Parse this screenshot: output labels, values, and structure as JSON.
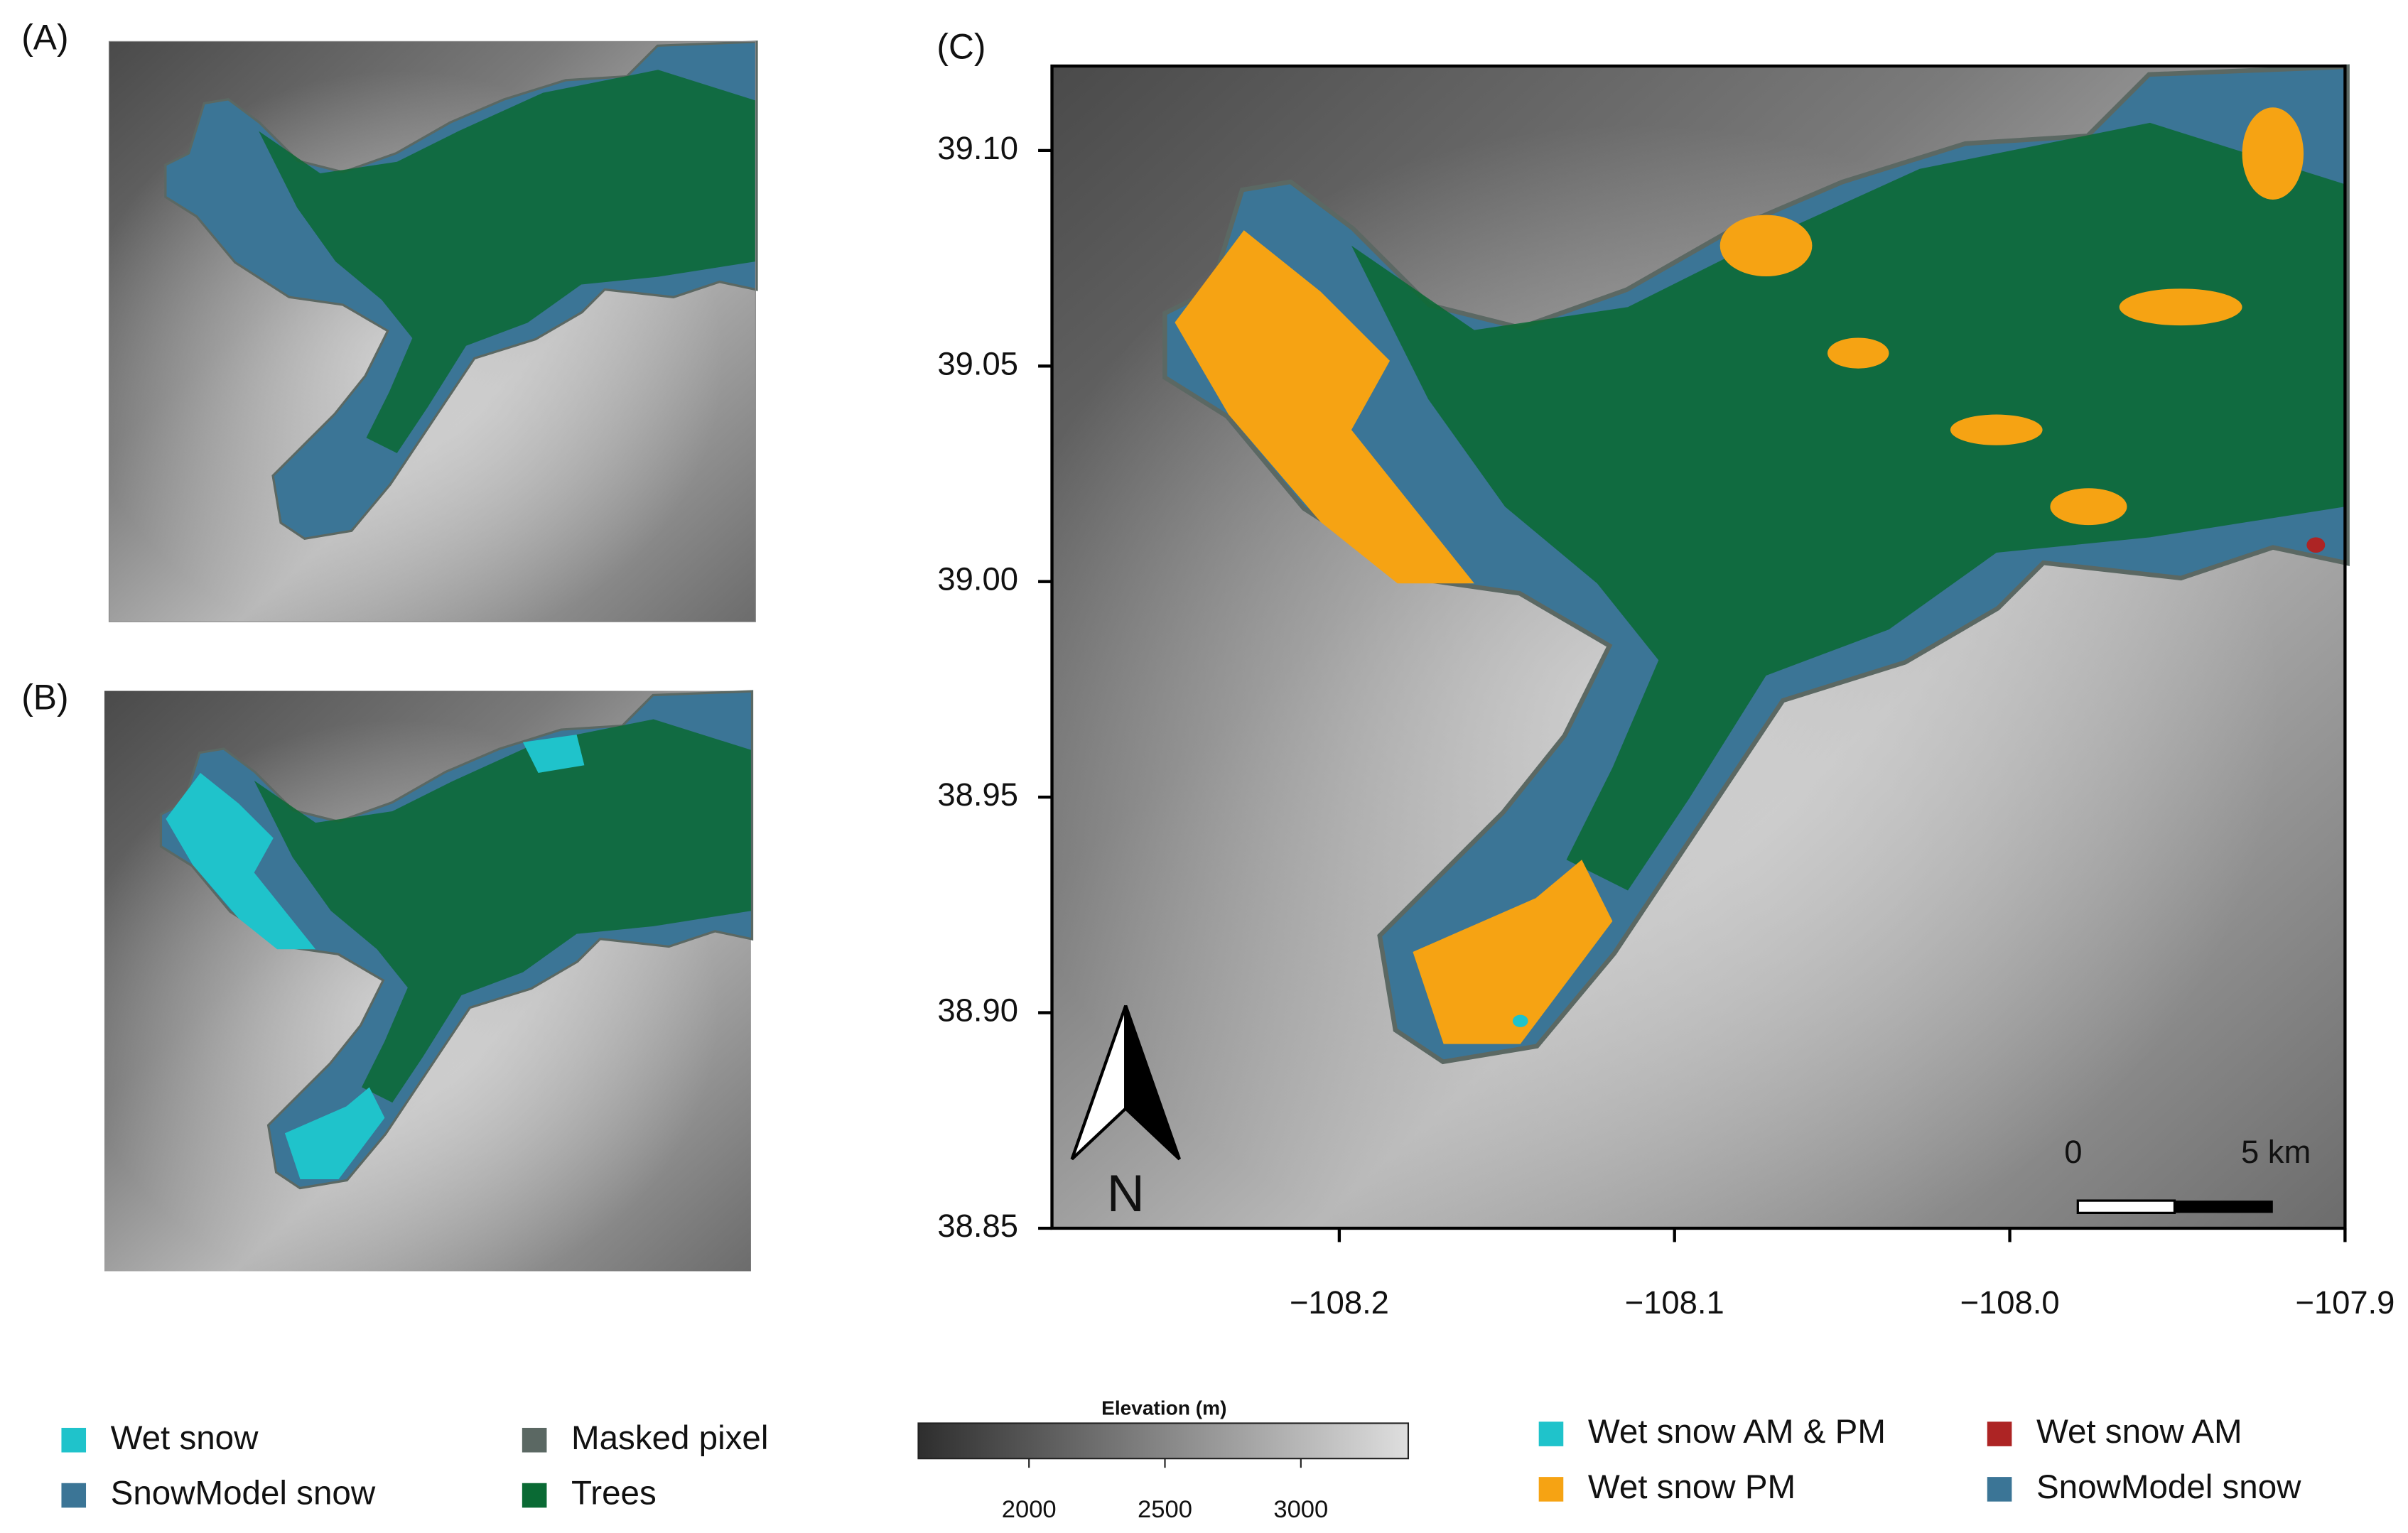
{
  "panel_labels": [
    "(A)",
    "(B)",
    "(C)"
  ],
  "map_c": {
    "xlim": [
      -108.2857,
      -107.9
    ],
    "ylim": [
      38.85,
      39.1196
    ],
    "xticks": [
      {
        "value": -108.2,
        "label": "−108.2"
      },
      {
        "value": -108.1,
        "label": "−108.1"
      },
      {
        "value": -108.0,
        "label": "−108.0"
      },
      {
        "value": -107.9,
        "label": "−107.9"
      }
    ],
    "yticks": [
      {
        "value": 39.1,
        "label": "39.10"
      },
      39.05,
      {
        "value": 39.0,
        "label": "39.00"
      },
      38.95,
      {
        "value": 38.9,
        "label": "38.90"
      },
      38.85
    ]
  },
  "scale_bar": {
    "start": "0",
    "end": "5 km"
  },
  "north": "N",
  "colorbar": {
    "title": "Elevation (m)",
    "lim": [
      1593,
      3395
    ],
    "ticks": [
      2000,
      2500,
      3000
    ]
  },
  "legend_ab": [
    {
      "name": "Wet snow",
      "color": "#1fc3cb"
    },
    {
      "name": "SnowModel snow",
      "color": "#3b7596"
    },
    {
      "name": "Masked pixel",
      "color": "#5b6863"
    },
    {
      "name": "Trees",
      "color": "#0a6a34"
    }
  ],
  "legend_c": [
    {
      "name": "Wet snow AM & PM",
      "color": "#1fc3cb"
    },
    {
      "name": "Wet snow PM",
      "color": "#f6a313"
    },
    {
      "name": "Wet snow AM",
      "color": "#ad2424"
    },
    {
      "name": "SnowModel snow",
      "color": "#3b7596"
    }
  ]
}
